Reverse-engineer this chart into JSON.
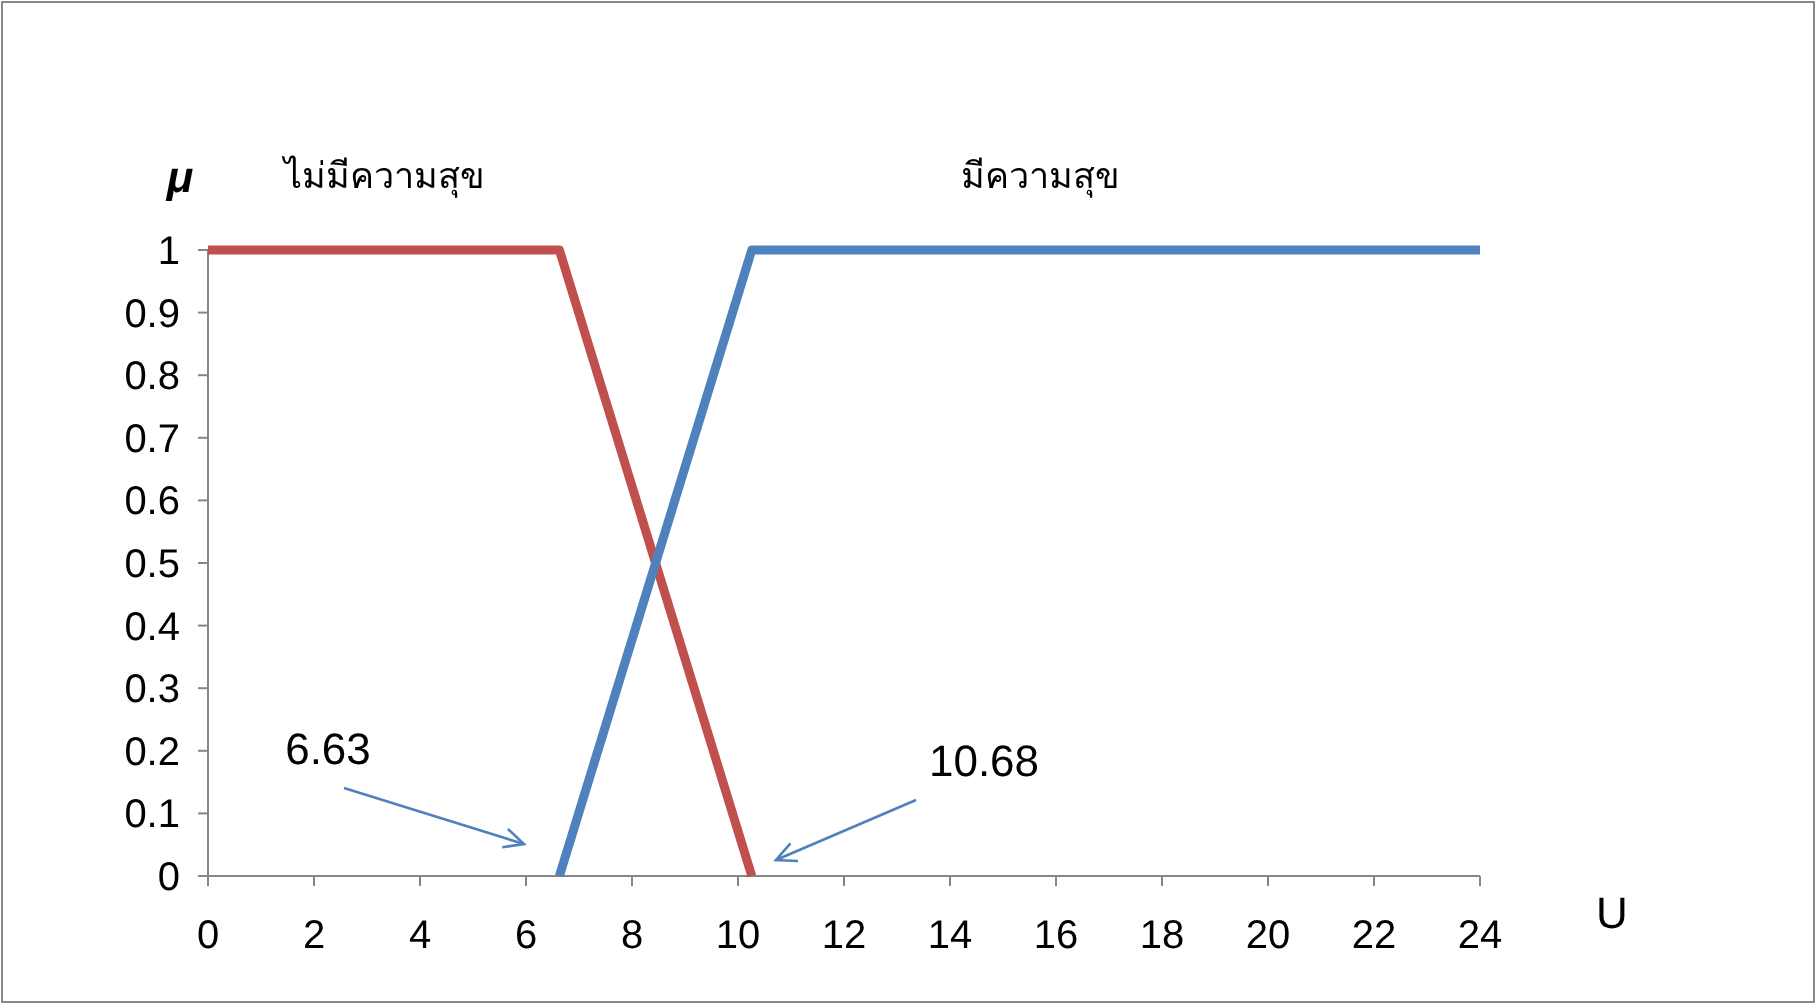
{
  "chart_data": {
    "type": "line",
    "xlabel": "U",
    "ylabel": "μ",
    "xlim": [
      0,
      24
    ],
    "xticks": [
      0,
      2,
      4,
      6,
      8,
      10,
      12,
      14,
      16,
      18,
      20,
      22,
      24
    ],
    "ylim": [
      0,
      1
    ],
    "yticks": [
      0,
      0.1,
      0.2,
      0.3,
      0.4,
      0.5,
      0.6,
      0.7,
      0.8,
      0.9,
      1
    ],
    "series": [
      {
        "name": "ไม่มีความสุข",
        "color": "#c0504d",
        "x": [
          0,
          6.63,
          10.26
        ],
        "values": [
          1,
          1,
          0
        ]
      },
      {
        "name": "มีความสุข",
        "color": "#4f81bd",
        "x": [
          6.63,
          10.26,
          24
        ],
        "values": [
          0,
          1,
          1
        ]
      }
    ],
    "annotations": [
      "6.63",
      "10.68"
    ],
    "grid": false,
    "marker": "none",
    "line_style": "solid"
  }
}
